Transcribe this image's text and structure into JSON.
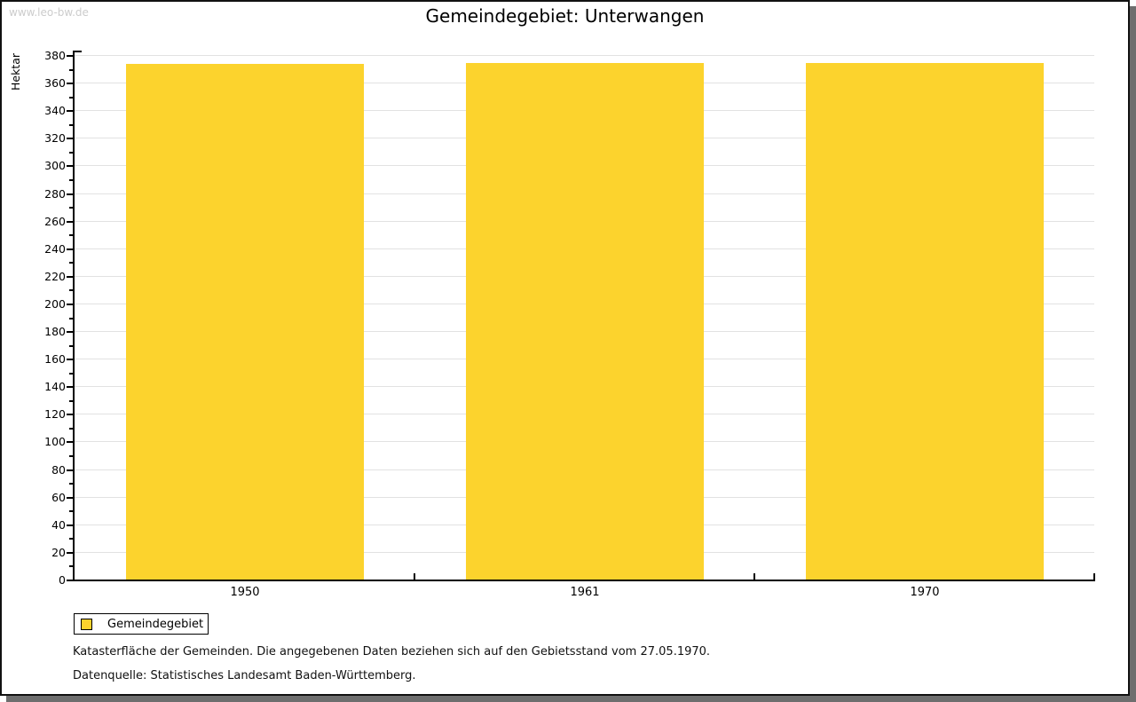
{
  "watermark": "www.leo-bw.de",
  "header": {
    "title": "Gemeindegebiet: Unterwangen"
  },
  "chart_data": {
    "type": "bar",
    "title": "Gemeindegebiet: Unterwangen",
    "ylabel": "Hektar",
    "xlabel": "",
    "categories": [
      "1950",
      "1961",
      "1970"
    ],
    "series": [
      {
        "name": "Gemeindegebiet",
        "color": "#fcd32d",
        "values": [
          374,
          375,
          375
        ]
      }
    ],
    "ylim": [
      0,
      380
    ],
    "ytick_major_step": 20,
    "ytick_minor_step": 10,
    "grid": "horizontal-major",
    "legend_position": "bottom-left"
  },
  "legend": {
    "items": [
      {
        "label": "Gemeindegebiet",
        "color": "#fcd32d"
      }
    ]
  },
  "footnotes": {
    "line1": "Katasterfläche der Gemeinden. Die angegebenen Daten beziehen sich auf den Gebietsstand vom 27.05.1970.",
    "line2": "Datenquelle: Statistisches Landesamt Baden-Württemberg."
  },
  "colors": {
    "bar": "#fcd32d",
    "grid": "#e2e2e2",
    "axis": "#000000",
    "watermark": "#cccccc",
    "shadow": "#6e6e6e",
    "background": "#ffffff"
  }
}
